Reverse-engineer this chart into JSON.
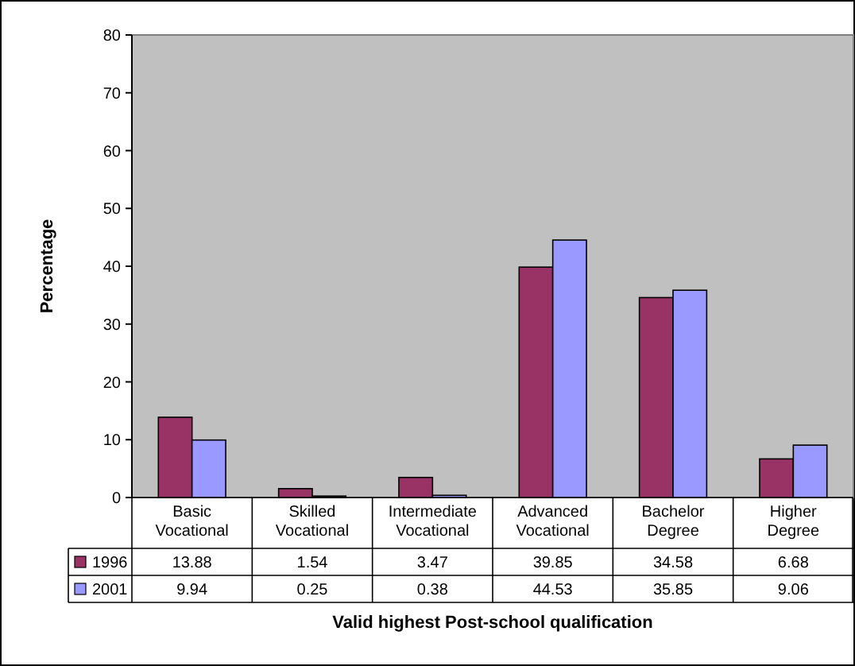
{
  "chart_data": {
    "type": "bar",
    "xlabel": "Valid highest Post-school qualification",
    "ylabel": "Percentage",
    "categories": [
      "Basic Vocational",
      "Skilled Vocational",
      "Intermediate Vocational",
      "Advanced Vocational",
      "Bachelor Degree",
      "Higher Degree"
    ],
    "series": [
      {
        "name": "1996",
        "color": "#993366",
        "values": [
          13.88,
          1.54,
          3.47,
          39.85,
          34.58,
          6.68
        ]
      },
      {
        "name": "2001",
        "color": "#9999ff",
        "values": [
          9.94,
          0.25,
          0.38,
          44.53,
          35.85,
          9.06
        ]
      }
    ],
    "ylim": [
      0,
      80
    ],
    "yticks": [
      0,
      10,
      20,
      30,
      40,
      50,
      60,
      70,
      80
    ],
    "grid": false,
    "legend": "bottom",
    "data_labels": true
  }
}
